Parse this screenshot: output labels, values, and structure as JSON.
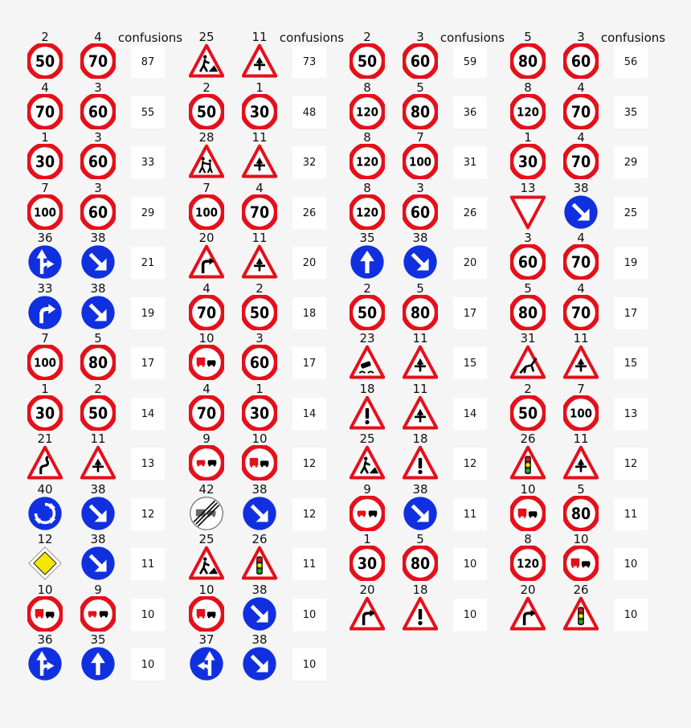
{
  "header_label": "confusions",
  "groups": [
    {
      "pairs": [
        {
          "a": 2,
          "b": 4,
          "count": 87
        },
        {
          "a": 4,
          "b": 3,
          "count": 55
        },
        {
          "a": 1,
          "b": 3,
          "count": 33
        },
        {
          "a": 7,
          "b": 3,
          "count": 29
        },
        {
          "a": 36,
          "b": 38,
          "count": 21
        },
        {
          "a": 33,
          "b": 38,
          "count": 19
        },
        {
          "a": 7,
          "b": 5,
          "count": 17
        },
        {
          "a": 1,
          "b": 2,
          "count": 14
        },
        {
          "a": 21,
          "b": 11,
          "count": 13
        },
        {
          "a": 40,
          "b": 38,
          "count": 12
        },
        {
          "a": 12,
          "b": 38,
          "count": 11
        },
        {
          "a": 10,
          "b": 9,
          "count": 10
        },
        {
          "a": 36,
          "b": 35,
          "count": 10
        }
      ]
    },
    {
      "pairs": [
        {
          "a": 25,
          "b": 11,
          "count": 73
        },
        {
          "a": 2,
          "b": 1,
          "count": 48
        },
        {
          "a": 28,
          "b": 11,
          "count": 32
        },
        {
          "a": 7,
          "b": 4,
          "count": 26
        },
        {
          "a": 20,
          "b": 11,
          "count": 20
        },
        {
          "a": 4,
          "b": 2,
          "count": 18
        },
        {
          "a": 10,
          "b": 3,
          "count": 17
        },
        {
          "a": 4,
          "b": 1,
          "count": 14
        },
        {
          "a": 9,
          "b": 10,
          "count": 12
        },
        {
          "a": 42,
          "b": 38,
          "count": 12
        },
        {
          "a": 25,
          "b": 26,
          "count": 11
        },
        {
          "a": 10,
          "b": 38,
          "count": 10
        },
        {
          "a": 37,
          "b": 38,
          "count": 10
        }
      ]
    },
    {
      "pairs": [
        {
          "a": 2,
          "b": 3,
          "count": 59
        },
        {
          "a": 8,
          "b": 5,
          "count": 36
        },
        {
          "a": 8,
          "b": 7,
          "count": 31
        },
        {
          "a": 8,
          "b": 3,
          "count": 26
        },
        {
          "a": 35,
          "b": 38,
          "count": 20
        },
        {
          "a": 2,
          "b": 5,
          "count": 17
        },
        {
          "a": 23,
          "b": 11,
          "count": 15
        },
        {
          "a": 18,
          "b": 11,
          "count": 14
        },
        {
          "a": 25,
          "b": 18,
          "count": 12
        },
        {
          "a": 9,
          "b": 38,
          "count": 11
        },
        {
          "a": 1,
          "b": 5,
          "count": 10
        },
        {
          "a": 20,
          "b": 18,
          "count": 10
        }
      ]
    },
    {
      "pairs": [
        {
          "a": 5,
          "b": 3,
          "count": 56
        },
        {
          "a": 8,
          "b": 4,
          "count": 35
        },
        {
          "a": 1,
          "b": 4,
          "count": 29
        },
        {
          "a": 13,
          "b": 38,
          "count": 25
        },
        {
          "a": 3,
          "b": 4,
          "count": 19
        },
        {
          "a": 5,
          "b": 4,
          "count": 17
        },
        {
          "a": 31,
          "b": 11,
          "count": 15
        },
        {
          "a": 2,
          "b": 7,
          "count": 13
        },
        {
          "a": 26,
          "b": 11,
          "count": 12
        },
        {
          "a": 10,
          "b": 5,
          "count": 11
        },
        {
          "a": 8,
          "b": 10,
          "count": 10
        },
        {
          "a": 20,
          "b": 26,
          "count": 10
        }
      ]
    }
  ],
  "sign_icons": {
    "1": "speed-limit-30",
    "2": "speed-limit-50",
    "3": "speed-limit-60",
    "4": "speed-limit-70",
    "5": "speed-limit-80",
    "7": "speed-limit-100",
    "8": "speed-limit-120",
    "9": "no-overtaking",
    "10": "no-overtaking-trucks",
    "11": "right-of-way-at-intersection",
    "12": "priority-road",
    "13": "yield",
    "18": "general-caution",
    "20": "dangerous-curve-right",
    "21": "double-curve",
    "23": "slippery-road",
    "25": "road-work",
    "26": "traffic-signals",
    "28": "children-crossing",
    "31": "wild-animals-crossing",
    "33": "turn-right-ahead",
    "35": "ahead-only",
    "36": "go-straight-or-right",
    "37": "go-straight-or-left",
    "38": "keep-right",
    "40": "roundabout-mandatory",
    "42": "end-of-no-passing-trucks"
  },
  "speed_values": {
    "1": "30",
    "2": "50",
    "3": "60",
    "4": "70",
    "5": "80",
    "7": "100",
    "8": "120"
  },
  "colors": {
    "red": "#e4101a",
    "blue": "#1030e0",
    "yellow": "#f5e600",
    "background": "#f5f5f5"
  }
}
